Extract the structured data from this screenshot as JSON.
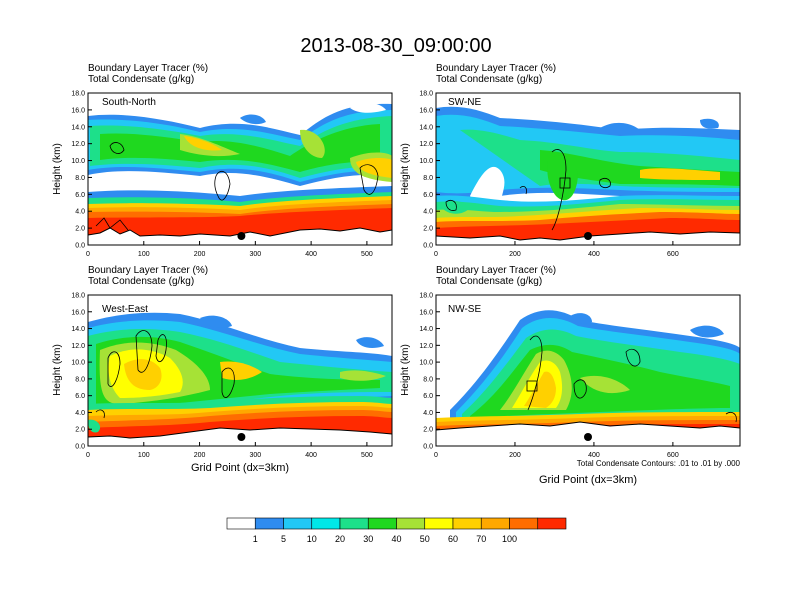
{
  "title": "2013-08-30_09:00:00",
  "subtitle_line1": "Boundary Layer Tracer   (%)",
  "subtitle_line2": "Total Condensate   (g/kg)",
  "ylabel": "Height (km)",
  "xlabel": "Grid Point (dx=3km)",
  "contour_note": "Total Condensate Contours: .01 to .01 by .000",
  "colorbar": {
    "colors": [
      "#ffffff",
      "#2f8cf0",
      "#22c8f5",
      "#00e8e8",
      "#1de08a",
      "#1fd81f",
      "#a6e236",
      "#ffff00",
      "#ffd000",
      "#ffa800",
      "#ff6d00",
      "#ff2a00"
    ],
    "labels": [
      "1",
      "5",
      "10",
      "20",
      "30",
      "40",
      "50",
      "60",
      "70",
      "100"
    ]
  },
  "chart_data": [
    {
      "type": "heatmap",
      "name": "South-North",
      "label": "South-North",
      "title": "Boundary Layer Tracer (%) / Total Condensate (g/kg)",
      "xlabel": "",
      "ylabel": "Height (km)",
      "xlim": [
        0,
        545
      ],
      "ylim": [
        0,
        18
      ],
      "xticks": [
        0,
        100,
        200,
        300,
        400,
        500
      ],
      "yticks": [
        "0.0",
        "2.0",
        "4.0",
        "6.0",
        "8.0",
        "10.0",
        "12.0",
        "14.0",
        "16.0",
        "18.0"
      ],
      "marker_x": 275
    },
    {
      "type": "heatmap",
      "name": "SW-NE",
      "label": "SW-NE",
      "title": "Boundary Layer Tracer (%) / Total Condensate (g/kg)",
      "xlabel": "",
      "ylabel": "Height (km)",
      "xlim": [
        0,
        770
      ],
      "ylim": [
        0,
        18
      ],
      "xticks": [
        0,
        200,
        400,
        600
      ],
      "yticks": [
        "0.0",
        "2.0",
        "4.0",
        "6.0",
        "8.0",
        "10.0",
        "12.0",
        "14.0",
        "16.0",
        "18.0"
      ],
      "marker_x": 385
    },
    {
      "type": "heatmap",
      "name": "West-East",
      "label": "West-East",
      "title": "Boundary Layer Tracer (%) / Total Condensate (g/kg)",
      "xlabel": "Grid Point (dx=3km)",
      "ylabel": "Height (km)",
      "xlim": [
        0,
        545
      ],
      "ylim": [
        0,
        18
      ],
      "xticks": [
        0,
        100,
        200,
        300,
        400,
        500
      ],
      "yticks": [
        "0.0",
        "2.0",
        "4.0",
        "6.0",
        "8.0",
        "10.0",
        "12.0",
        "14.0",
        "16.0",
        "18.0"
      ],
      "marker_x": 275
    },
    {
      "type": "heatmap",
      "name": "NW-SE",
      "label": "NW-SE",
      "title": "Boundary Layer Tracer (%) / Total Condensate (g/kg)",
      "xlabel": "Grid Point (dx=3km)",
      "ylabel": "Height (km)",
      "xlim": [
        0,
        770
      ],
      "ylim": [
        0,
        18
      ],
      "xticks": [
        0,
        200,
        400,
        600
      ],
      "yticks": [
        "0.0",
        "2.0",
        "4.0",
        "6.0",
        "8.0",
        "10.0",
        "12.0",
        "14.0",
        "16.0",
        "18.0"
      ],
      "marker_x": 385
    }
  ]
}
